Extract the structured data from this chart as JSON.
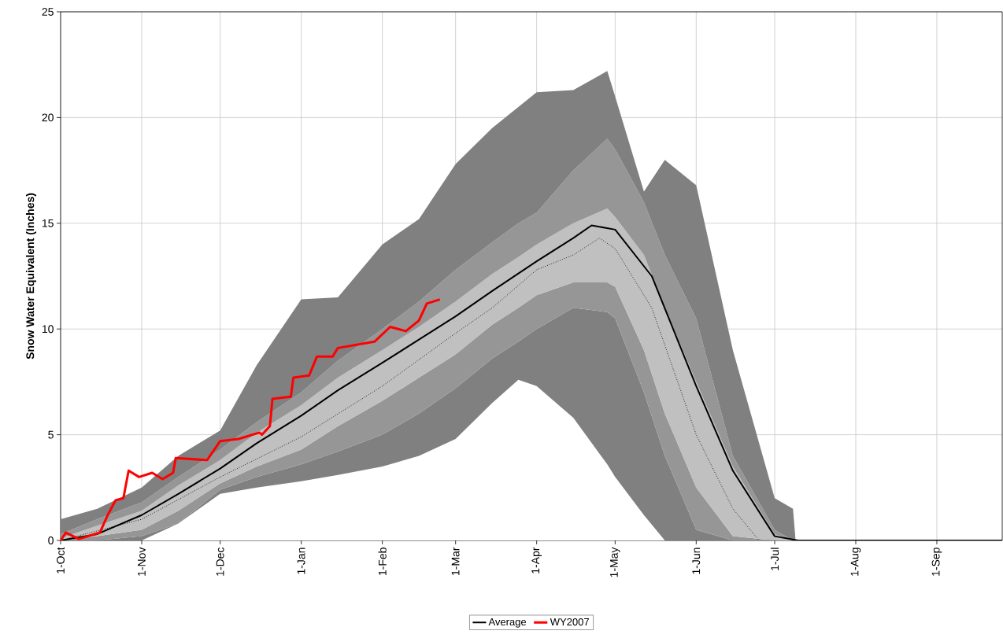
{
  "chart_data": {
    "type": "line",
    "ylabel": "Snow Water Equivalent (Inches)",
    "stacked": true,
    "xlim": [
      "2006-10-01",
      "2007-09-26"
    ],
    "ylim": [
      0,
      25
    ],
    "xticks": [
      {
        "value": "2006-10-01",
        "label": "1-Oct"
      },
      {
        "value": "2006-11-01",
        "label": "1-Nov"
      },
      {
        "value": "2006-12-01",
        "label": "1-Dec"
      },
      {
        "value": "2007-01-01",
        "label": "1-Jan"
      },
      {
        "value": "2007-02-01",
        "label": "1-Feb"
      },
      {
        "value": "2007-03-01",
        "label": "1-Mar"
      },
      {
        "value": "2007-04-01",
        "label": "1-Apr"
      },
      {
        "value": "2007-05-01",
        "label": "1-May"
      },
      {
        "value": "2007-06-01",
        "label": "1-Jun"
      },
      {
        "value": "2007-07-01",
        "label": "1-Jul"
      },
      {
        "value": "2007-08-01",
        "label": "1-Aug"
      },
      {
        "value": "2007-09-01",
        "label": "1-Sep"
      }
    ],
    "yticks": [
      0,
      5,
      10,
      15,
      20,
      25
    ],
    "grid": true,
    "legend": "bottom",
    "series": [
      {
        "type": "area",
        "color": "#ffffff",
        "x": [
          "2006-10-01",
          "2006-10-15",
          "2006-11-01",
          "2006-11-15",
          "2006-12-01",
          "2006-12-15",
          "2007-01-01",
          "2007-01-15",
          "2007-02-01",
          "2007-02-15",
          "2007-03-01",
          "2007-03-15",
          "2007-03-25",
          "2007-04-01",
          "2007-04-15",
          "2007-04-28",
          "2007-05-01",
          "2007-05-12",
          "2007-05-20",
          "2007-06-01",
          "2007-06-15",
          "2007-07-01",
          "2007-07-08",
          "2007-07-09"
        ],
        "values": [
          0,
          0,
          0,
          0.8,
          2.2,
          2.5,
          2.8,
          3.1,
          3.5,
          4.0,
          4.8,
          6.5,
          7.6,
          7.3,
          5.8,
          3.6,
          3.0,
          1.2,
          0,
          0,
          0,
          0,
          0,
          0
        ]
      },
      {
        "type": "area",
        "color": "#808080",
        "x": [
          "2006-10-01",
          "2006-10-15",
          "2006-11-01",
          "2006-11-15",
          "2006-12-01",
          "2006-12-15",
          "2007-01-01",
          "2007-01-15",
          "2007-02-01",
          "2007-02-15",
          "2007-03-01",
          "2007-03-15",
          "2007-03-25",
          "2007-04-01",
          "2007-04-15",
          "2007-04-28",
          "2007-05-01",
          "2007-05-12",
          "2007-05-20",
          "2007-06-01",
          "2007-06-15",
          "2007-07-01",
          "2007-07-08",
          "2007-07-09"
        ],
        "values": [
          0,
          0,
          0.2,
          0,
          0.2,
          0.5,
          0.8,
          1.1,
          1.5,
          2.0,
          2.4,
          2.1,
          1.8,
          2.7,
          5.2,
          7.2,
          7.5,
          5.8,
          4.0,
          0.5,
          0,
          0,
          0,
          0
        ]
      },
      {
        "type": "area",
        "color": "#969696",
        "x": [
          "2006-10-01",
          "2006-10-15",
          "2006-11-01",
          "2006-11-15",
          "2006-12-01",
          "2006-12-15",
          "2007-01-01",
          "2007-01-15",
          "2007-02-01",
          "2007-02-15",
          "2007-03-01",
          "2007-03-15",
          "2007-03-25",
          "2007-04-01",
          "2007-04-15",
          "2007-04-28",
          "2007-05-01",
          "2007-05-12",
          "2007-05-20",
          "2007-06-01",
          "2007-06-15",
          "2007-07-01",
          "2007-07-08",
          "2007-07-09"
        ],
        "values": [
          0,
          0.2,
          0.3,
          0.6,
          0.3,
          0.5,
          0.7,
          1.2,
          1.6,
          1.7,
          1.6,
          1.6,
          1.6,
          1.6,
          1.2,
          1.4,
          1.5,
          2.0,
          2.0,
          2.0,
          0.2,
          0,
          0,
          0
        ]
      },
      {
        "type": "area",
        "color": "#c0c0c0",
        "x": [
          "2006-10-01",
          "2006-10-15",
          "2006-11-01",
          "2006-11-15",
          "2006-12-01",
          "2006-12-15",
          "2007-01-01",
          "2007-01-15",
          "2007-02-01",
          "2007-02-15",
          "2007-03-01",
          "2007-03-15",
          "2007-03-25",
          "2007-04-01",
          "2007-04-15",
          "2007-04-28",
          "2007-05-01",
          "2007-05-12",
          "2007-05-20",
          "2007-06-01",
          "2007-06-15",
          "2007-07-01",
          "2007-07-08",
          "2007-07-09"
        ],
        "values": [
          0.1,
          0.5,
          0.9,
          1.2,
          1.1,
          1.6,
          2.1,
          2.3,
          2.4,
          2.4,
          2.5,
          2.4,
          2.4,
          2.4,
          2.8,
          3.5,
          3.3,
          4.5,
          5.0,
          5.0,
          3.3,
          0.3,
          0,
          0
        ]
      },
      {
        "type": "area",
        "color": "#969696",
        "x": [
          "2006-10-01",
          "2006-10-15",
          "2006-11-01",
          "2006-11-15",
          "2006-12-01",
          "2006-12-15",
          "2007-01-01",
          "2007-01-15",
          "2007-02-01",
          "2007-02-15",
          "2007-03-01",
          "2007-03-15",
          "2007-03-25",
          "2007-04-01",
          "2007-04-15",
          "2007-04-28",
          "2007-05-01",
          "2007-05-12",
          "2007-05-20",
          "2007-06-01",
          "2007-06-15",
          "2007-07-01",
          "2007-07-08",
          "2007-07-09"
        ],
        "values": [
          0.2,
          0.3,
          0.4,
          0.4,
          0.5,
          0.5,
          0.6,
          0.8,
          1.0,
          1.2,
          1.5,
          1.5,
          1.6,
          1.5,
          2.5,
          3.3,
          3.2,
          2.5,
          2.5,
          3.0,
          0.5,
          0.2,
          0,
          0
        ]
      },
      {
        "type": "area",
        "color": "#808080",
        "x": [
          "2006-10-01",
          "2006-10-15",
          "2006-11-01",
          "2006-11-15",
          "2006-12-01",
          "2006-12-15",
          "2007-01-01",
          "2007-01-15",
          "2007-02-01",
          "2007-02-15",
          "2007-03-01",
          "2007-03-15",
          "2007-03-25",
          "2007-04-01",
          "2007-04-15",
          "2007-04-28",
          "2007-05-01",
          "2007-05-12",
          "2007-05-20",
          "2007-06-01",
          "2007-06-15",
          "2007-07-01",
          "2007-07-08",
          "2007-07-09"
        ],
        "values": [
          0.7,
          0.5,
          0.7,
          1.0,
          0.9,
          2.7,
          4.4,
          3.0,
          4.0,
          3.9,
          5.0,
          5.4,
          5.5,
          5.7,
          3.8,
          3.2,
          2.5,
          0.5,
          4.5,
          6.3,
          5.0,
          1.5,
          1.5,
          0
        ]
      },
      {
        "color": "#000000",
        "line_style": "dotted",
        "x": [
          "2006-10-01",
          "2006-11-01",
          "2006-12-01",
          "2007-01-01",
          "2007-02-01",
          "2007-03-01",
          "2007-03-15",
          "2007-04-01",
          "2007-04-15",
          "2007-04-25",
          "2007-05-01",
          "2007-05-15",
          "2007-06-01",
          "2007-06-15",
          "2007-06-25"
        ],
        "values": [
          0,
          1.0,
          3.0,
          4.9,
          7.3,
          9.8,
          11.0,
          12.8,
          13.5,
          14.3,
          13.8,
          11.0,
          5.0,
          1.5,
          0
        ]
      },
      {
        "name": "Average",
        "color": "#000000",
        "line_style": "solid",
        "x": [
          "2006-10-01",
          "2006-10-15",
          "2006-11-01",
          "2006-11-15",
          "2006-12-01",
          "2006-12-15",
          "2007-01-01",
          "2007-01-15",
          "2007-02-01",
          "2007-02-15",
          "2007-03-01",
          "2007-03-15",
          "2007-04-01",
          "2007-04-15",
          "2007-04-22",
          "2007-05-01",
          "2007-05-15",
          "2007-06-01",
          "2007-06-15",
          "2007-07-01",
          "2007-07-10",
          "2007-09-26"
        ],
        "values": [
          0,
          0.3,
          1.2,
          2.2,
          3.4,
          4.6,
          5.9,
          7.1,
          8.4,
          9.5,
          10.6,
          11.8,
          13.2,
          14.3,
          14.9,
          14.7,
          12.5,
          7.3,
          3.3,
          0.2,
          0,
          0
        ]
      },
      {
        "name": "WY2007",
        "color": "#ff0000",
        "line_style": "solid",
        "x": [
          "2006-10-01",
          "2006-10-03",
          "2006-10-08",
          "2006-10-16",
          "2006-10-19",
          "2006-10-22",
          "2006-10-25",
          "2006-10-27",
          "2006-10-31",
          "2006-11-05",
          "2006-11-09",
          "2006-11-13",
          "2006-11-14",
          "2006-11-26",
          "2006-12-01",
          "2006-12-08",
          "2006-12-16",
          "2006-12-17",
          "2006-12-20",
          "2006-12-21",
          "2006-12-28",
          "2006-12-29",
          "2007-01-04",
          "2007-01-07",
          "2007-01-13",
          "2007-01-15",
          "2007-01-29",
          "2007-02-04",
          "2007-02-10",
          "2007-02-15",
          "2007-02-18",
          "2007-02-23"
        ],
        "values": [
          0,
          0.37,
          0.07,
          0.37,
          1.2,
          1.9,
          2.0,
          3.3,
          3.0,
          3.2,
          2.9,
          3.2,
          3.9,
          3.8,
          4.7,
          4.8,
          5.1,
          5.0,
          5.4,
          6.7,
          6.8,
          7.7,
          7.8,
          8.7,
          8.7,
          9.1,
          9.4,
          10.1,
          9.9,
          10.4,
          11.2,
          11.4
        ]
      }
    ]
  }
}
